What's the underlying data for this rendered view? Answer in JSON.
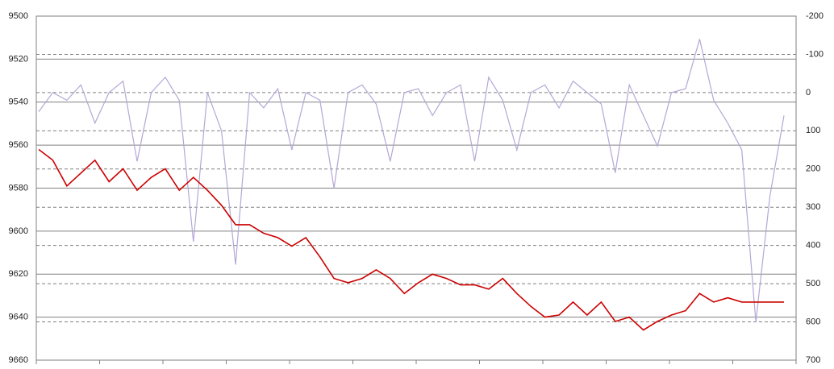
{
  "chart_data": {
    "type": "line",
    "series": [
      {
        "color": "#cc0000",
        "values": [
          9562,
          9567,
          9579,
          9573,
          9567,
          9577,
          9571,
          9581,
          9575,
          9571,
          9581,
          9575,
          9581,
          9588,
          9597,
          9597,
          9601,
          9603,
          9607,
          9603,
          9612,
          9622,
          9624,
          9622,
          9618,
          9622,
          9629,
          9624,
          9620,
          9622,
          9625,
          9625,
          9627,
          9622,
          9629,
          9635,
          9640,
          9639,
          9633,
          9639,
          9633,
          9642,
          9640,
          9646,
          9642,
          9639,
          9637,
          9629,
          9633,
          9631,
          9633,
          9633,
          9633,
          9633
        ]
      },
      {
        "color": "#b4a7d6",
        "axis": "y2",
        "values": [
          50,
          0,
          20,
          -20,
          80,
          0,
          -30,
          180,
          0,
          -40,
          20,
          390,
          0,
          100,
          450,
          0,
          40,
          -10,
          150,
          0,
          20,
          250,
          0,
          -20,
          30,
          180,
          0,
          -10,
          60,
          0,
          -20,
          180,
          -40,
          20,
          150,
          0,
          -20,
          40,
          -30,
          0,
          30,
          210,
          -20,
          60,
          140,
          0,
          -10,
          -140,
          20,
          80,
          150,
          600,
          270,
          60
        ]
      }
    ],
    "ylim": [
      9660,
      9500
    ],
    "yticks": [
      9500,
      9520,
      9540,
      9560,
      9580,
      9600,
      9620,
      9640,
      9660
    ],
    "y2lim": [
      700,
      -200
    ],
    "y2ticks": [
      -200,
      -100,
      0,
      100,
      200,
      300,
      400,
      500,
      600,
      700
    ],
    "grid": true
  }
}
